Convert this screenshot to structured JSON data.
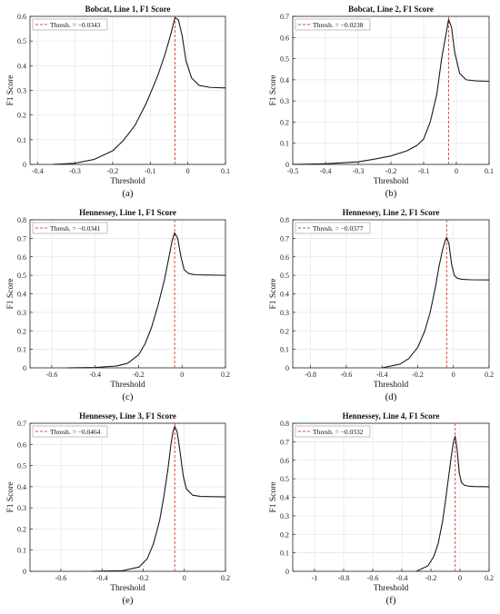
{
  "colors": {
    "curve": "#1a1a1a",
    "threshold": "#e0453a",
    "grid": "#e4e4e4",
    "axis": "#222222"
  },
  "chart_data": [
    {
      "id": "a",
      "type": "line",
      "grid": true,
      "legend_position": "top-left",
      "title": "Bobcat, Line 1, F1 Score",
      "xlabel": "Threshold",
      "ylabel": "F1 Score",
      "panel_label": "(a)",
      "xlim": [
        -0.42,
        0.1
      ],
      "ylim": [
        0,
        0.6
      ],
      "xticks": [
        -0.4,
        -0.3,
        -0.2,
        -0.1,
        0,
        0.1
      ],
      "xtick_labels": [
        "-0.4",
        "-0.3",
        "-0.2",
        "-0.1",
        "0",
        "0.1"
      ],
      "yticks": [
        0,
        0.1,
        0.2,
        0.3,
        0.4,
        0.5,
        0.6
      ],
      "ytick_labels": [
        "0",
        "0.1",
        "0.2",
        "0.3",
        "0.4",
        "0.5",
        "0.6"
      ],
      "threshold": {
        "label": "Thresh. = −0.0343",
        "x": -0.0343
      },
      "series": [
        {
          "x": [
            -0.36,
            -0.3,
            -0.25,
            -0.2,
            -0.17,
            -0.14,
            -0.11,
            -0.08,
            -0.06,
            -0.045,
            -0.0343,
            -0.025,
            -0.015,
            -0.005,
            0.01,
            0.03,
            0.06,
            0.1
          ],
          "y": [
            0.0,
            0.005,
            0.02,
            0.055,
            0.1,
            0.16,
            0.25,
            0.36,
            0.45,
            0.53,
            0.595,
            0.585,
            0.52,
            0.42,
            0.35,
            0.32,
            0.312,
            0.31
          ]
        }
      ]
    },
    {
      "id": "b",
      "type": "line",
      "grid": true,
      "legend_position": "top-left",
      "title": "Bobcat, Line 2, F1 Score",
      "xlabel": "Threshold",
      "ylabel": "F1 Score",
      "panel_label": "(b)",
      "xlim": [
        -0.5,
        0.1
      ],
      "ylim": [
        0,
        0.7
      ],
      "xticks": [
        -0.5,
        -0.4,
        -0.3,
        -0.2,
        -0.1,
        0,
        0.1
      ],
      "xtick_labels": [
        "-0.5",
        "-0.4",
        "-0.3",
        "-0.2",
        "-0.1",
        "0",
        "0.1"
      ],
      "yticks": [
        0,
        0.1,
        0.2,
        0.3,
        0.4,
        0.5,
        0.6,
        0.7
      ],
      "ytick_labels": [
        "0",
        "0.1",
        "0.2",
        "0.3",
        "0.4",
        "0.5",
        "0.6",
        "0.7"
      ],
      "threshold": {
        "label": "Thresh. = −0.0238",
        "x": -0.0238
      },
      "series": [
        {
          "x": [
            -0.5,
            -0.4,
            -0.3,
            -0.25,
            -0.2,
            -0.15,
            -0.12,
            -0.1,
            -0.08,
            -0.06,
            -0.045,
            -0.0238,
            -0.015,
            -0.005,
            0.01,
            0.03,
            0.06,
            0.1
          ],
          "y": [
            0.0,
            0.003,
            0.012,
            0.025,
            0.04,
            0.065,
            0.09,
            0.12,
            0.2,
            0.33,
            0.5,
            0.685,
            0.65,
            0.53,
            0.43,
            0.4,
            0.395,
            0.393
          ]
        }
      ]
    },
    {
      "id": "c",
      "type": "line",
      "grid": true,
      "legend_position": "top-left",
      "title": "Hennessey, Line 1, F1 Score",
      "xlabel": "Threshold",
      "ylabel": "F1 Score",
      "panel_label": "(c)",
      "xlim": [
        -0.7,
        0.2
      ],
      "ylim": [
        0,
        0.8
      ],
      "xticks": [
        -0.6,
        -0.4,
        -0.2,
        0,
        0.2
      ],
      "xtick_labels": [
        "-0.6",
        "-0.4",
        "-0.2",
        "0",
        "0.2"
      ],
      "yticks": [
        0,
        0.1,
        0.2,
        0.3,
        0.4,
        0.5,
        0.6,
        0.7,
        0.8
      ],
      "ytick_labels": [
        "0",
        "0.1",
        "0.2",
        "0.3",
        "0.4",
        "0.5",
        "0.6",
        "0.7",
        "0.8"
      ],
      "threshold": {
        "label": "Thresh. = −0.0341",
        "x": -0.0341
      },
      "series": [
        {
          "x": [
            -0.53,
            -0.4,
            -0.3,
            -0.25,
            -0.2,
            -0.17,
            -0.14,
            -0.11,
            -0.08,
            -0.06,
            -0.045,
            -0.0341,
            -0.02,
            -0.005,
            0.01,
            0.03,
            0.06,
            0.1,
            0.2
          ],
          "y": [
            0.0,
            0.002,
            0.01,
            0.025,
            0.07,
            0.13,
            0.22,
            0.34,
            0.48,
            0.6,
            0.69,
            0.73,
            0.7,
            0.6,
            0.53,
            0.51,
            0.503,
            0.502,
            0.5
          ]
        }
      ]
    },
    {
      "id": "d",
      "type": "line",
      "grid": true,
      "legend_position": "top-left",
      "title": "Hennessey, Line 2, F1 Score",
      "xlabel": "Threshold",
      "ylabel": "F1 Score",
      "panel_label": "(d)",
      "xlim": [
        -0.9,
        0.2
      ],
      "ylim": [
        0,
        0.8
      ],
      "xticks": [
        -0.8,
        -0.6,
        -0.4,
        -0.2,
        0,
        0.2
      ],
      "xtick_labels": [
        "-0.8",
        "-0.6",
        "-0.4",
        "-0.2",
        "0",
        "0.2"
      ],
      "yticks": [
        0,
        0.1,
        0.2,
        0.3,
        0.4,
        0.5,
        0.6,
        0.7,
        0.8
      ],
      "ytick_labels": [
        "0",
        "0.1",
        "0.2",
        "0.3",
        "0.4",
        "0.5",
        "0.6",
        "0.7",
        "0.8"
      ],
      "threshold": {
        "label": "Thresh. = −0.0377",
        "x": -0.0377
      },
      "series": [
        {
          "x": [
            -0.4,
            -0.3,
            -0.25,
            -0.2,
            -0.16,
            -0.13,
            -0.1,
            -0.08,
            -0.06,
            -0.045,
            -0.0377,
            -0.025,
            -0.01,
            0.005,
            0.02,
            0.05,
            0.1,
            0.2
          ],
          "y": [
            0.0,
            0.02,
            0.05,
            0.11,
            0.2,
            0.3,
            0.44,
            0.55,
            0.64,
            0.69,
            0.705,
            0.67,
            0.56,
            0.5,
            0.485,
            0.478,
            0.476,
            0.475
          ]
        }
      ]
    },
    {
      "id": "e",
      "type": "line",
      "grid": true,
      "legend_position": "top-left",
      "title": "Hennessey, Line 3, F1 Score",
      "xlabel": "Threshold",
      "ylabel": "F1 Score",
      "panel_label": "(e)",
      "xlim": [
        -0.75,
        0.2
      ],
      "ylim": [
        0,
        0.7
      ],
      "xticks": [
        -0.6,
        -0.4,
        -0.2,
        0,
        0.2
      ],
      "xtick_labels": [
        "-0.6",
        "-0.4",
        "-0.2",
        "0",
        "0.2"
      ],
      "yticks": [
        0,
        0.1,
        0.2,
        0.3,
        0.4,
        0.5,
        0.6,
        0.7
      ],
      "ytick_labels": [
        "0",
        "0.1",
        "0.2",
        "0.3",
        "0.4",
        "0.5",
        "0.6",
        "0.7"
      ],
      "threshold": {
        "label": "Thresh. = −0.0464",
        "x": -0.0464
      },
      "series": [
        {
          "x": [
            -0.45,
            -0.3,
            -0.22,
            -0.18,
            -0.15,
            -0.12,
            -0.1,
            -0.08,
            -0.065,
            -0.055,
            -0.0464,
            -0.035,
            -0.02,
            -0.005,
            0.01,
            0.04,
            0.08,
            0.2
          ],
          "y": [
            0.0,
            0.003,
            0.02,
            0.06,
            0.13,
            0.24,
            0.35,
            0.48,
            0.6,
            0.66,
            0.685,
            0.66,
            0.56,
            0.45,
            0.39,
            0.36,
            0.354,
            0.352
          ]
        }
      ]
    },
    {
      "id": "f",
      "type": "line",
      "grid": true,
      "legend_position": "top-left",
      "title": "Hennessey, Line 4, F1 Score",
      "xlabel": "Threshold",
      "ylabel": "F1 Score",
      "panel_label": "(f)",
      "xlim": [
        -1.15,
        0.2
      ],
      "ylim": [
        0,
        0.8
      ],
      "xticks": [
        -1,
        -0.8,
        -0.6,
        -0.4,
        -0.2,
        0,
        0.2
      ],
      "xtick_labels": [
        "-1",
        "-0.8",
        "-0.6",
        "-0.4",
        "-0.2",
        "0",
        "0.2"
      ],
      "yticks": [
        0,
        0.1,
        0.2,
        0.3,
        0.4,
        0.5,
        0.6,
        0.7,
        0.8
      ],
      "ytick_labels": [
        "0",
        "0.1",
        "0.2",
        "0.3",
        "0.4",
        "0.5",
        "0.6",
        "0.7",
        "0.8"
      ],
      "threshold": {
        "label": "Thresh. = −0.0332",
        "x": -0.0332
      },
      "series": [
        {
          "x": [
            -0.3,
            -0.22,
            -0.18,
            -0.15,
            -0.12,
            -0.1,
            -0.08,
            -0.06,
            -0.045,
            -0.0332,
            -0.02,
            -0.005,
            0.01,
            0.03,
            0.06,
            0.1,
            0.2
          ],
          "y": [
            0.0,
            0.03,
            0.08,
            0.15,
            0.27,
            0.38,
            0.5,
            0.62,
            0.7,
            0.73,
            0.66,
            0.53,
            0.48,
            0.465,
            0.46,
            0.458,
            0.457
          ]
        }
      ]
    }
  ]
}
